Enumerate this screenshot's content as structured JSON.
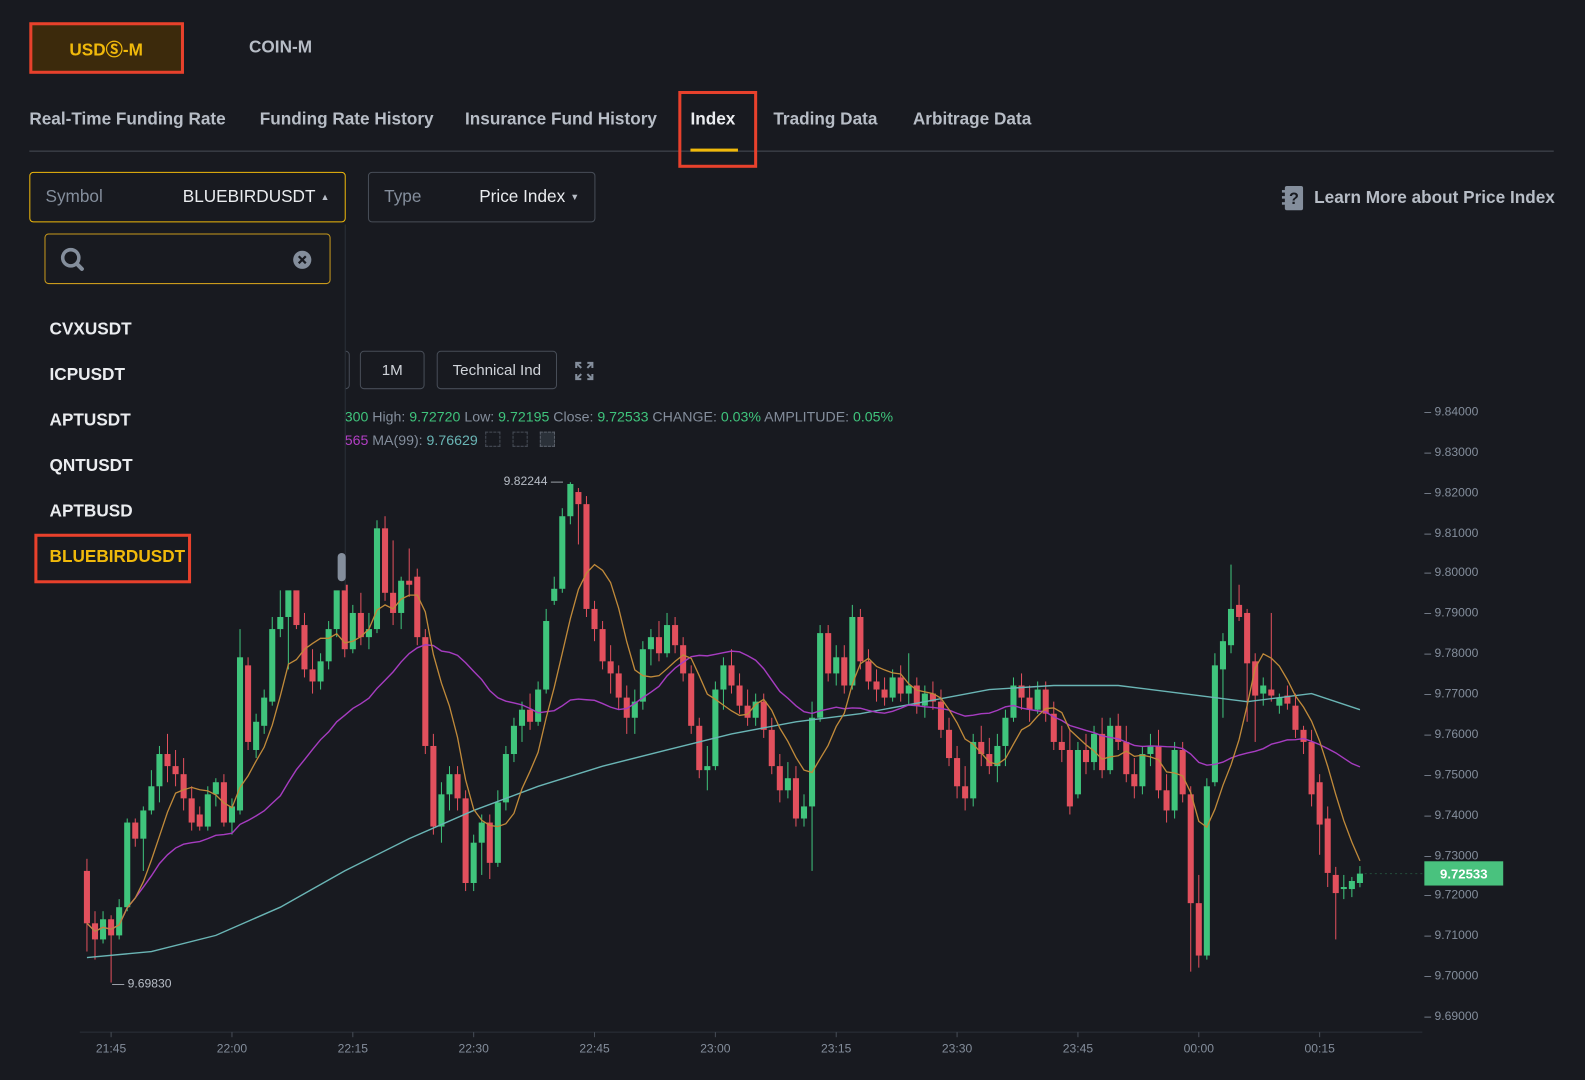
{
  "market_tabs": [
    {
      "label": "USDⓈ-M",
      "active": true
    },
    {
      "label": "COIN-M",
      "active": false
    }
  ],
  "nav_tabs": [
    {
      "label": "Real-Time Funding Rate"
    },
    {
      "label": "Funding Rate History"
    },
    {
      "label": "Insurance Fund History"
    },
    {
      "label": "Index",
      "active": true
    },
    {
      "label": "Trading Data"
    },
    {
      "label": "Arbitrage Data"
    }
  ],
  "symbol_select": {
    "label": "Symbol",
    "value": "BLUEBIRDUSDT",
    "caret": "up"
  },
  "type_select": {
    "label": "Type",
    "value": "Price Index",
    "caret": "down"
  },
  "learn_more": {
    "label": "Learn More about Price Index",
    "icon": "help-book-icon"
  },
  "symbol_dropdown": {
    "search_value": "",
    "search_icon": "search-icon",
    "clear_icon": "clear-icon",
    "items": [
      "CVXUSDT",
      "ICPUSDT",
      "APTUSDT",
      "QNTUSDT",
      "APTBUSD",
      "BLUEBIRDUSDT"
    ],
    "selected": "BLUEBIRDUSDT"
  },
  "chart_toolbar": {
    "interval": "1M",
    "indicators": "Technical Ind",
    "fullscreen_icon": "expand-icon"
  },
  "ohlc_info": {
    "open_fragment": "300",
    "high_label": "High:",
    "high": "9.72720",
    "low_label": "Low:",
    "low": "9.72195",
    "close_label": "Close:",
    "close": "9.72533",
    "change_label": "CHANGE:",
    "change": "0.03%",
    "amplitude_label": "AMPLITUDE:",
    "amplitude": "0.05%"
  },
  "ma_info": {
    "ma25_fragment": "565",
    "ma99_label": "MA(99):",
    "ma99": "9.76629"
  },
  "colors": {
    "up": "#3fc47c",
    "down": "#e2505d",
    "ma7": "#c08a3a",
    "ma25": "#a63cc0",
    "ma99": "#6ab5b5",
    "accent": "#f0b90b",
    "background": "#181a20"
  },
  "chart_data": {
    "type": "candlestick",
    "interval": "1m",
    "ylim": [
      9.69,
      9.84
    ],
    "y_ticks": [
      "9.84000",
      "9.83000",
      "9.82000",
      "9.81000",
      "9.80000",
      "9.79000",
      "9.78000",
      "9.77000",
      "9.76000",
      "9.75000",
      "9.74000",
      "9.73000",
      "9.72000",
      "9.71000",
      "9.70000",
      "9.69000"
    ],
    "x_ticks": [
      "21:45",
      "22:00",
      "22:15",
      "22:30",
      "22:45",
      "23:00",
      "23:15",
      "23:30",
      "23:45",
      "00:00",
      "00:15"
    ],
    "last_price": "9.72533",
    "high_marker": "9.82244",
    "low_marker": "9.69830",
    "ohlc": [
      [
        9.726,
        9.729,
        9.706,
        9.713
      ],
      [
        9.713,
        9.716,
        9.704,
        9.709
      ],
      [
        9.709,
        9.716,
        9.708,
        9.714
      ],
      [
        9.714,
        9.715,
        9.6983,
        9.71
      ],
      [
        9.71,
        9.719,
        9.709,
        9.717
      ],
      [
        9.717,
        9.739,
        9.716,
        9.738
      ],
      [
        9.738,
        9.739,
        9.732,
        9.734
      ],
      [
        9.734,
        9.742,
        9.726,
        9.741
      ],
      [
        9.741,
        9.751,
        9.74,
        9.747
      ],
      [
        9.747,
        9.757,
        9.743,
        9.755
      ],
      [
        9.755,
        9.76,
        9.748,
        9.752
      ],
      [
        9.752,
        9.756,
        9.747,
        9.75
      ],
      [
        9.75,
        9.754,
        9.741,
        9.744
      ],
      [
        9.744,
        9.747,
        9.736,
        9.738
      ],
      [
        9.74,
        9.742,
        9.736,
        9.737
      ],
      [
        9.737,
        9.747,
        9.736,
        9.745
      ],
      [
        9.745,
        9.749,
        9.742,
        9.748
      ],
      [
        9.748,
        9.75,
        9.737,
        9.738
      ],
      [
        9.738,
        9.744,
        9.735,
        9.742
      ],
      [
        9.741,
        9.786,
        9.74,
        9.779
      ],
      [
        9.777,
        9.779,
        9.756,
        9.758
      ],
      [
        9.756,
        9.765,
        9.754,
        9.763
      ],
      [
        9.762,
        9.771,
        9.76,
        9.769
      ],
      [
        9.768,
        9.789,
        9.767,
        9.786
      ],
      [
        9.786,
        9.797,
        9.784,
        9.789
      ],
      [
        9.789,
        9.798,
        9.776,
        9.797
      ],
      [
        9.797,
        9.798,
        9.786,
        9.787
      ],
      [
        9.787,
        9.79,
        9.774,
        9.776
      ],
      [
        9.776,
        9.781,
        9.77,
        9.773
      ],
      [
        9.773,
        9.78,
        9.771,
        9.778
      ],
      [
        9.778,
        9.788,
        9.776,
        9.786
      ],
      [
        9.786,
        9.8,
        9.784,
        9.797
      ],
      [
        9.797,
        9.807,
        9.779,
        9.781
      ],
      [
        9.781,
        9.792,
        9.78,
        9.79
      ],
      [
        9.79,
        9.795,
        9.782,
        9.784
      ],
      [
        9.784,
        9.79,
        9.781,
        9.786
      ],
      [
        9.786,
        9.813,
        9.785,
        9.811
      ],
      [
        9.811,
        9.814,
        9.793,
        9.795
      ],
      [
        9.795,
        9.808,
        9.787,
        9.79
      ],
      [
        9.79,
        9.799,
        9.786,
        9.798
      ],
      [
        9.798,
        9.806,
        9.794,
        9.797
      ],
      [
        9.799,
        9.801,
        9.782,
        9.784
      ],
      [
        9.784,
        9.786,
        9.755,
        9.757
      ],
      [
        9.757,
        9.76,
        9.735,
        9.737
      ],
      [
        9.737,
        9.748,
        9.733,
        9.745
      ],
      [
        9.745,
        9.752,
        9.741,
        9.75
      ],
      [
        9.75,
        9.752,
        9.741,
        9.744
      ],
      [
        9.744,
        9.746,
        9.721,
        9.723
      ],
      [
        9.723,
        9.735,
        9.721,
        9.733
      ],
      [
        9.733,
        9.74,
        9.725,
        9.738
      ],
      [
        9.738,
        9.74,
        9.724,
        9.728
      ],
      [
        9.728,
        9.746,
        9.727,
        9.743
      ],
      [
        9.743,
        9.757,
        9.741,
        9.755
      ],
      [
        9.755,
        9.764,
        9.753,
        9.762
      ],
      [
        9.762,
        9.768,
        9.758,
        9.766
      ],
      [
        9.766,
        9.77,
        9.761,
        9.763
      ],
      [
        9.763,
        9.773,
        9.762,
        9.771
      ],
      [
        9.771,
        9.791,
        9.77,
        9.788
      ],
      [
        9.793,
        9.799,
        9.792,
        9.796
      ],
      [
        9.796,
        9.816,
        9.795,
        9.814
      ],
      [
        9.814,
        9.82244,
        9.812,
        9.822
      ],
      [
        9.82,
        9.821,
        9.807,
        9.817
      ],
      [
        9.817,
        9.819,
        9.789,
        9.791
      ],
      [
        9.791,
        9.793,
        9.783,
        9.786
      ],
      [
        9.786,
        9.788,
        9.776,
        9.778
      ],
      [
        9.778,
        9.782,
        9.77,
        9.775
      ],
      [
        9.775,
        9.777,
        9.766,
        9.769
      ],
      [
        9.769,
        9.772,
        9.76,
        9.764
      ],
      [
        9.764,
        9.771,
        9.76,
        9.768
      ],
      [
        9.768,
        9.783,
        9.766,
        9.781
      ],
      [
        9.781,
        9.786,
        9.777,
        9.784
      ],
      [
        9.784,
        9.788,
        9.778,
        9.78
      ],
      [
        9.78,
        9.79,
        9.779,
        9.787
      ],
      [
        9.787,
        9.789,
        9.78,
        9.782
      ],
      [
        9.782,
        9.784,
        9.773,
        9.775
      ],
      [
        9.775,
        9.777,
        9.76,
        9.762
      ],
      [
        9.762,
        9.764,
        9.749,
        9.751
      ],
      [
        9.751,
        9.757,
        9.746,
        9.752
      ],
      [
        9.752,
        9.773,
        9.751,
        9.771
      ],
      [
        9.771,
        9.779,
        9.766,
        9.777
      ],
      [
        9.777,
        9.781,
        9.77,
        9.772
      ],
      [
        9.772,
        9.775,
        9.765,
        9.767
      ],
      [
        9.767,
        9.771,
        9.762,
        9.764
      ],
      [
        9.764,
        9.77,
        9.762,
        9.768
      ],
      [
        9.768,
        9.77,
        9.759,
        9.761
      ],
      [
        9.761,
        9.764,
        9.75,
        9.752
      ],
      [
        9.752,
        9.755,
        9.743,
        9.746
      ],
      [
        9.746,
        9.753,
        9.744,
        9.749
      ],
      [
        9.749,
        9.752,
        9.737,
        9.739
      ],
      [
        9.739,
        9.745,
        9.737,
        9.742
      ],
      [
        9.742,
        9.768,
        9.726,
        9.764
      ],
      [
        9.764,
        9.787,
        9.763,
        9.785
      ],
      [
        9.785,
        9.787,
        9.773,
        9.775
      ],
      [
        9.775,
        9.782,
        9.772,
        9.779
      ],
      [
        9.779,
        9.782,
        9.77,
        9.772
      ],
      [
        9.772,
        9.792,
        9.771,
        9.789
      ],
      [
        9.789,
        9.791,
        9.776,
        9.778
      ],
      [
        9.778,
        9.781,
        9.771,
        9.773
      ],
      [
        9.773,
        9.776,
        9.768,
        9.771
      ],
      [
        9.771,
        9.774,
        9.767,
        9.769
      ],
      [
        9.769,
        9.776,
        9.768,
        9.774
      ],
      [
        9.774,
        9.777,
        9.768,
        9.77
      ],
      [
        9.77,
        9.78,
        9.767,
        9.772
      ],
      [
        9.772,
        9.774,
        9.765,
        9.767
      ],
      [
        9.767,
        9.772,
        9.764,
        9.77
      ],
      [
        9.77,
        9.773,
        9.766,
        9.768
      ],
      [
        9.768,
        9.771,
        9.759,
        9.761
      ],
      [
        9.761,
        9.764,
        9.752,
        9.754
      ],
      [
        9.754,
        9.757,
        9.744,
        9.747
      ],
      [
        9.747,
        9.752,
        9.741,
        9.744
      ],
      [
        9.744,
        9.76,
        9.742,
        9.758
      ],
      [
        9.758,
        9.762,
        9.752,
        9.755
      ],
      [
        9.755,
        9.759,
        9.75,
        9.752
      ],
      [
        9.752,
        9.76,
        9.748,
        9.757
      ],
      [
        9.757,
        9.766,
        9.752,
        9.764
      ],
      [
        9.764,
        9.774,
        9.763,
        9.772
      ],
      [
        9.772,
        9.775,
        9.766,
        9.769
      ],
      [
        9.769,
        9.772,
        9.763,
        9.766
      ],
      [
        9.766,
        9.773,
        9.765,
        9.771
      ],
      [
        9.771,
        9.773,
        9.763,
        9.765
      ],
      [
        9.765,
        9.768,
        9.756,
        9.758
      ],
      [
        9.758,
        9.762,
        9.753,
        9.756
      ],
      [
        9.756,
        9.761,
        9.74,
        9.742
      ],
      [
        9.745,
        9.758,
        9.744,
        9.756
      ],
      [
        9.756,
        9.76,
        9.75,
        9.753
      ],
      [
        9.753,
        9.762,
        9.751,
        9.76
      ],
      [
        9.76,
        9.764,
        9.749,
        9.751
      ],
      [
        9.751,
        9.764,
        9.75,
        9.762
      ],
      [
        9.762,
        9.765,
        9.756,
        9.758
      ],
      [
        9.758,
        9.762,
        9.748,
        9.75
      ],
      [
        9.75,
        9.754,
        9.744,
        9.747
      ],
      [
        9.747,
        9.757,
        9.745,
        9.755
      ],
      [
        9.755,
        9.76,
        9.752,
        9.757
      ],
      [
        9.757,
        9.761,
        9.744,
        9.746
      ],
      [
        9.746,
        9.75,
        9.738,
        9.741
      ],
      [
        9.741,
        9.758,
        9.739,
        9.756
      ],
      [
        9.756,
        9.758,
        9.743,
        9.745
      ],
      [
        9.745,
        9.747,
        9.701,
        9.718
      ],
      [
        9.718,
        9.725,
        9.702,
        9.705
      ],
      [
        9.705,
        9.749,
        9.704,
        9.747
      ],
      [
        9.748,
        9.78,
        9.747,
        9.777
      ],
      [
        9.776,
        9.785,
        9.764,
        9.783
      ],
      [
        9.782,
        9.802,
        9.78,
        9.791
      ],
      [
        9.792,
        9.797,
        9.788,
        9.789
      ],
      [
        9.79,
        9.791,
        9.763,
        9.7775
      ],
      [
        9.778,
        9.78,
        9.758,
        9.7695
      ],
      [
        9.77,
        9.774,
        9.767,
        9.772
      ],
      [
        9.771,
        9.79,
        9.768,
        9.7695
      ],
      [
        9.767,
        9.77,
        9.765,
        9.769
      ],
      [
        9.7695,
        9.772,
        9.766,
        9.7675
      ],
      [
        9.767,
        9.77,
        9.759,
        9.761
      ],
      [
        9.761,
        9.762,
        9.755,
        9.758
      ],
      [
        9.758,
        9.761,
        9.742,
        9.745
      ],
      [
        9.748,
        9.75,
        9.73,
        9.7375
      ],
      [
        9.739,
        9.742,
        9.722,
        9.7255
      ],
      [
        9.725,
        9.727,
        9.709,
        9.7205
      ],
      [
        9.7215,
        9.725,
        9.719,
        9.722
      ],
      [
        9.7215,
        9.7245,
        9.7195,
        9.7235
      ],
      [
        9.723,
        9.7272,
        9.72195,
        9.72533
      ]
    ],
    "ma99": [
      [
        "21:42",
        9.7045
      ],
      [
        "21:50",
        9.706
      ],
      [
        "21:58",
        9.71
      ],
      [
        "22:06",
        9.717
      ],
      [
        "22:14",
        9.726
      ],
      [
        "22:22",
        9.734
      ],
      [
        "22:30",
        9.741
      ],
      [
        "22:38",
        9.747
      ],
      [
        "22:46",
        9.752
      ],
      [
        "22:54",
        9.756
      ],
      [
        "23:02",
        9.76
      ],
      [
        "23:10",
        9.763
      ],
      [
        "23:18",
        9.765
      ],
      [
        "23:26",
        9.768
      ],
      [
        "23:34",
        9.771
      ],
      [
        "23:42",
        9.772
      ],
      [
        "23:50",
        9.772
      ],
      [
        "23:58",
        9.77
      ],
      [
        "00:06",
        9.768
      ],
      [
        "00:14",
        9.77
      ],
      [
        "00:20",
        9.766
      ]
    ]
  }
}
